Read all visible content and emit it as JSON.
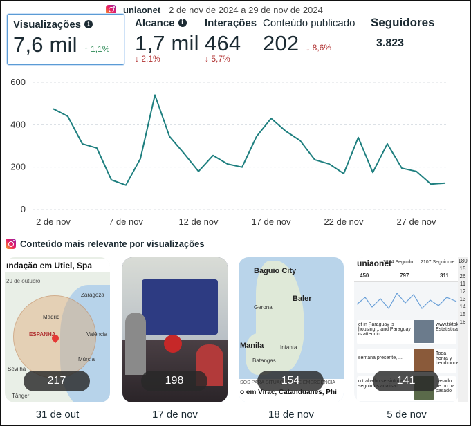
{
  "header": {
    "account": "uniaonet",
    "date_range": "2 de nov de 2024 a 29 de nov de 2024"
  },
  "metrics": {
    "views": {
      "label": "Visualizações",
      "value": "7,6 mil",
      "delta": "↑ 1,1%"
    },
    "reach": {
      "label": "Alcance",
      "value": "1,7 mil",
      "delta": "↓ 2,1%"
    },
    "interactions": {
      "label": "Interações",
      "value": "464",
      "delta": "↓ 5,7%"
    },
    "content": {
      "label": "Conteúdo publicado",
      "value": "202",
      "delta": "↓ 8,6%"
    },
    "followers": {
      "label": "Seguidores",
      "value": "3.823"
    }
  },
  "chart_data": {
    "type": "line",
    "x": [
      "2 de nov",
      "3 de nov",
      "4 de nov",
      "5 de nov",
      "6 de nov",
      "7 de nov",
      "8 de nov",
      "9 de nov",
      "10 de nov",
      "11 de nov",
      "12 de nov",
      "13 de nov",
      "14 de nov",
      "15 de nov",
      "16 de nov",
      "17 de nov",
      "18 de nov",
      "19 de nov",
      "20 de nov",
      "21 de nov",
      "22 de nov",
      "23 de nov",
      "24 de nov",
      "25 de nov",
      "26 de nov",
      "27 de nov",
      "28 de nov",
      "29 de nov"
    ],
    "values": [
      475,
      440,
      310,
      290,
      140,
      115,
      240,
      540,
      345,
      265,
      180,
      255,
      215,
      200,
      345,
      430,
      370,
      325,
      235,
      215,
      170,
      340,
      175,
      310,
      195,
      180,
      120,
      125
    ],
    "xtick_labels": [
      "2 de nov",
      "7 de nov",
      "12 de nov",
      "17 de nov",
      "22 de nov",
      "27 de nov"
    ],
    "ytick_labels": [
      "0",
      "200",
      "400",
      "600"
    ],
    "ylim": [
      0,
      600
    ],
    "line_color": "#1e7f7f",
    "grid": true,
    "title": "",
    "xlabel": "",
    "ylabel": ""
  },
  "top_content": {
    "title": "Conteúdo mais relevante por visualizações",
    "cards": [
      {
        "caption": "ındação em Utiel, Spa",
        "sub": "29 de outubro",
        "labels": [
          "Zaragoza",
          "Madrid",
          "ESPANHA",
          "Valência",
          "Múrcia",
          "Sevilha",
          "Tânger"
        ],
        "count": "217",
        "date": "31 de out"
      },
      {
        "count": "198",
        "date": "17 de nov"
      },
      {
        "labels": [
          "Baguio City",
          "Baler",
          "Manila",
          "Gerona",
          "Infanta",
          "Batangas"
        ],
        "bottom1": "SOS PARA SITUAÇÕES DE EMERGÊNCIA",
        "bottom2": "o em Virac, Catanduanes, Phi",
        "count": "154",
        "date": "18 de nov"
      },
      {
        "title": "uniaonet",
        "stats": [
          "3874 Seguido",
          "2107 Seguidore",
          "450",
          "797",
          "311"
        ],
        "posts": [
          "ct in Paraguay is housing... and Paraguay is attendin...",
          "semana presente, ...",
          "o trabalho se sintovez seguimos analisad..."
        ],
        "side": [
          "www.tiktok.c Estatisticas",
          "Toda honra y bendiciones",
          "pasado de no ha pasado"
        ],
        "count": "141",
        "date": "5 de nov"
      }
    ]
  },
  "scrollbar_labels": [
    "180",
    "15",
    "26",
    "11",
    "12",
    "13",
    "14",
    "15",
    "16"
  ]
}
